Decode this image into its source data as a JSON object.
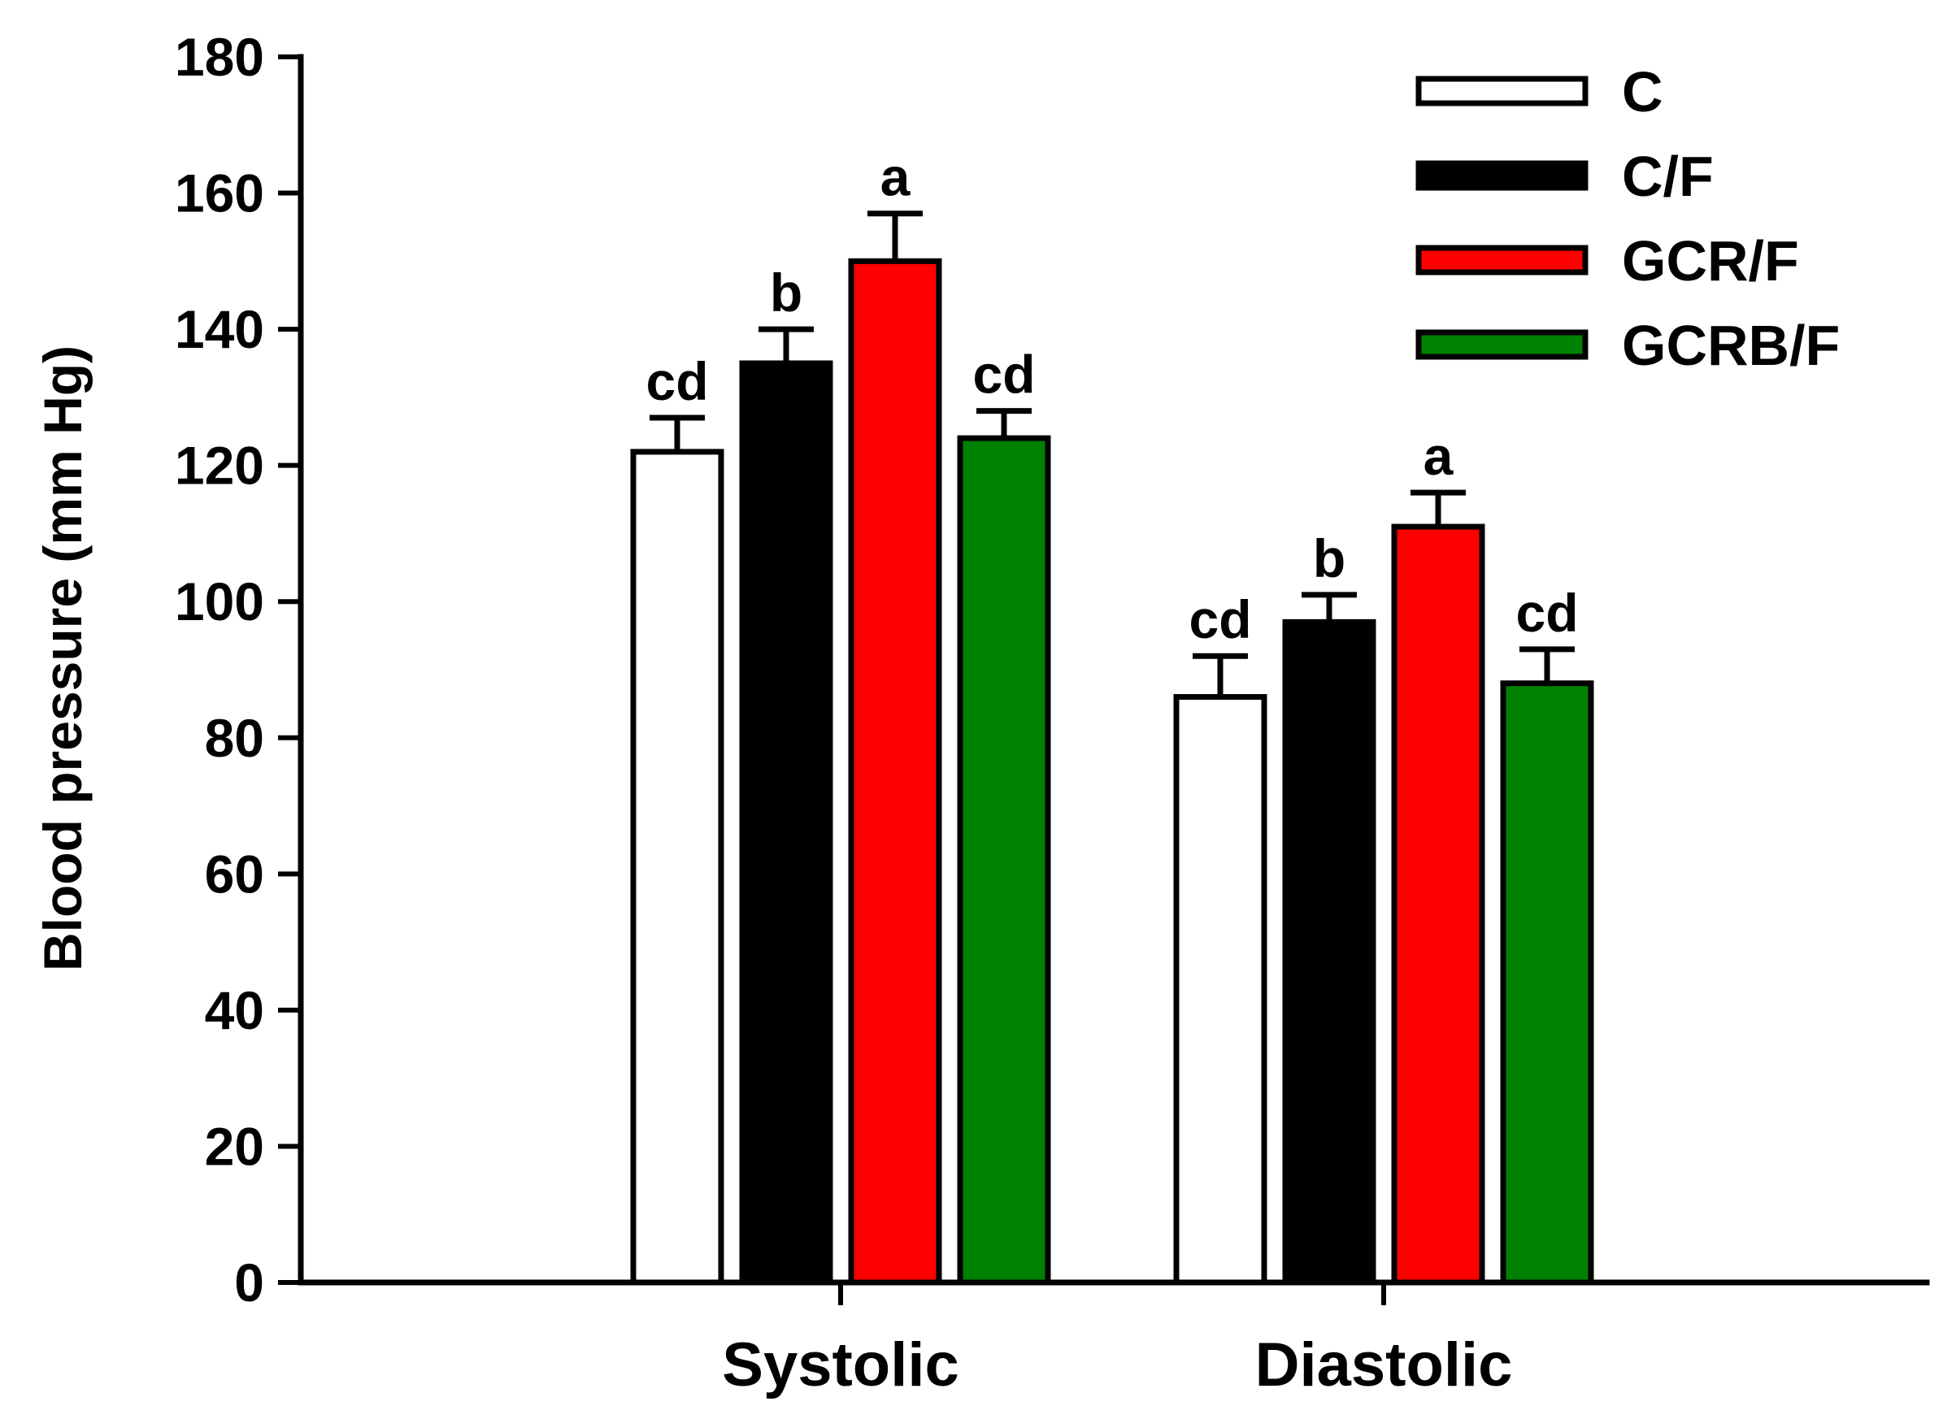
{
  "chart_data": {
    "type": "bar",
    "title": "",
    "xlabel": "",
    "ylabel": "Blood pressure (mm Hg)",
    "ylim": [
      0,
      180
    ],
    "yticks": [
      0,
      20,
      40,
      60,
      80,
      100,
      120,
      140,
      160,
      180
    ],
    "yticks_labels": [
      "0",
      "20",
      "40",
      "60",
      "80",
      "100",
      "120",
      "140",
      "160",
      "180"
    ],
    "categories": [
      "Systolic",
      "Diastolic"
    ],
    "legend_position": "top-right",
    "series": [
      {
        "name": "C",
        "color": "#ffffff",
        "values": [
          122,
          86
        ],
        "errors": [
          5,
          6
        ],
        "sig": [
          "cd",
          "cd"
        ]
      },
      {
        "name": "C/F",
        "color": "#000000",
        "values": [
          135,
          97
        ],
        "errors": [
          5,
          4
        ],
        "sig": [
          "b",
          "b"
        ]
      },
      {
        "name": "GCR/F",
        "color": "#ff0000",
        "values": [
          150,
          111
        ],
        "errors": [
          7,
          5
        ],
        "sig": [
          "a",
          "a"
        ]
      },
      {
        "name": "GCRB/F",
        "color": "#008000",
        "values": [
          124,
          88
        ],
        "errors": [
          4,
          5
        ],
        "sig": [
          "cd",
          "cd"
        ]
      }
    ]
  }
}
